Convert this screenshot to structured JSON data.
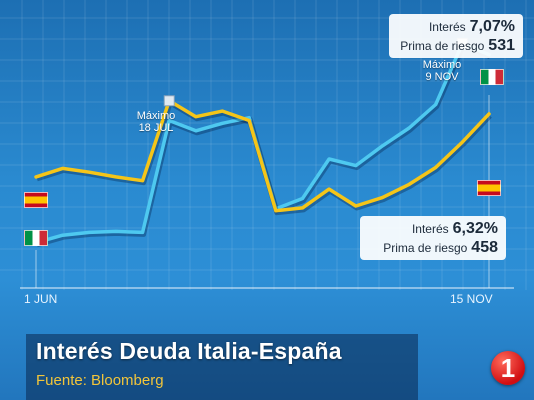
{
  "chart_data": {
    "type": "line",
    "title": "",
    "x_start_label": "1 JUN",
    "x_end_label": "15 NOV",
    "ylim": [
      5.0,
      7.5
    ],
    "grid": true,
    "series": [
      {
        "name": "Italia",
        "color": "#4ec9f0",
        "values": [
          4.95,
          5.03,
          5.06,
          5.07,
          5.06,
          6.25,
          6.14,
          6.22,
          6.28,
          5.31,
          5.42,
          5.84,
          5.77,
          5.98,
          6.17,
          6.42,
          7.07,
          6.95
        ]
      },
      {
        "name": "España",
        "color": "#f5c518",
        "values": [
          5.65,
          5.74,
          5.7,
          5.65,
          5.61,
          6.46,
          6.29,
          6.35,
          6.25,
          5.29,
          5.32,
          5.52,
          5.34,
          5.43,
          5.57,
          5.75,
          6.02,
          6.32
        ]
      }
    ],
    "annotations": {
      "italy_callout": {
        "interes_label": "Interés",
        "interes_value": "7,07%",
        "prima_label": "Prima de riesgo",
        "prima_value": "531"
      },
      "spain_callout": {
        "interes_label": "Interés",
        "interes_value": "6,32%",
        "prima_label": "Prima de riesgo",
        "prima_value": "458"
      },
      "peak_jul": {
        "line1": "Máximo",
        "line2": "18 JUL",
        "series_index": 1,
        "point_index": 5
      },
      "peak_nov": {
        "line1": "Máximo",
        "line2": "9 NOV",
        "series_index": 0,
        "point_index": 16
      }
    }
  },
  "caption": {
    "title": "Interés Deuda Italia-España",
    "source": "Fuente:  Bloomberg"
  },
  "logo": {
    "text": "1"
  },
  "colors": {
    "background": "#2a8ad0",
    "italy_line": "#4ec9f0",
    "spain_line": "#f5c518",
    "logo_red": "#d10e12"
  }
}
